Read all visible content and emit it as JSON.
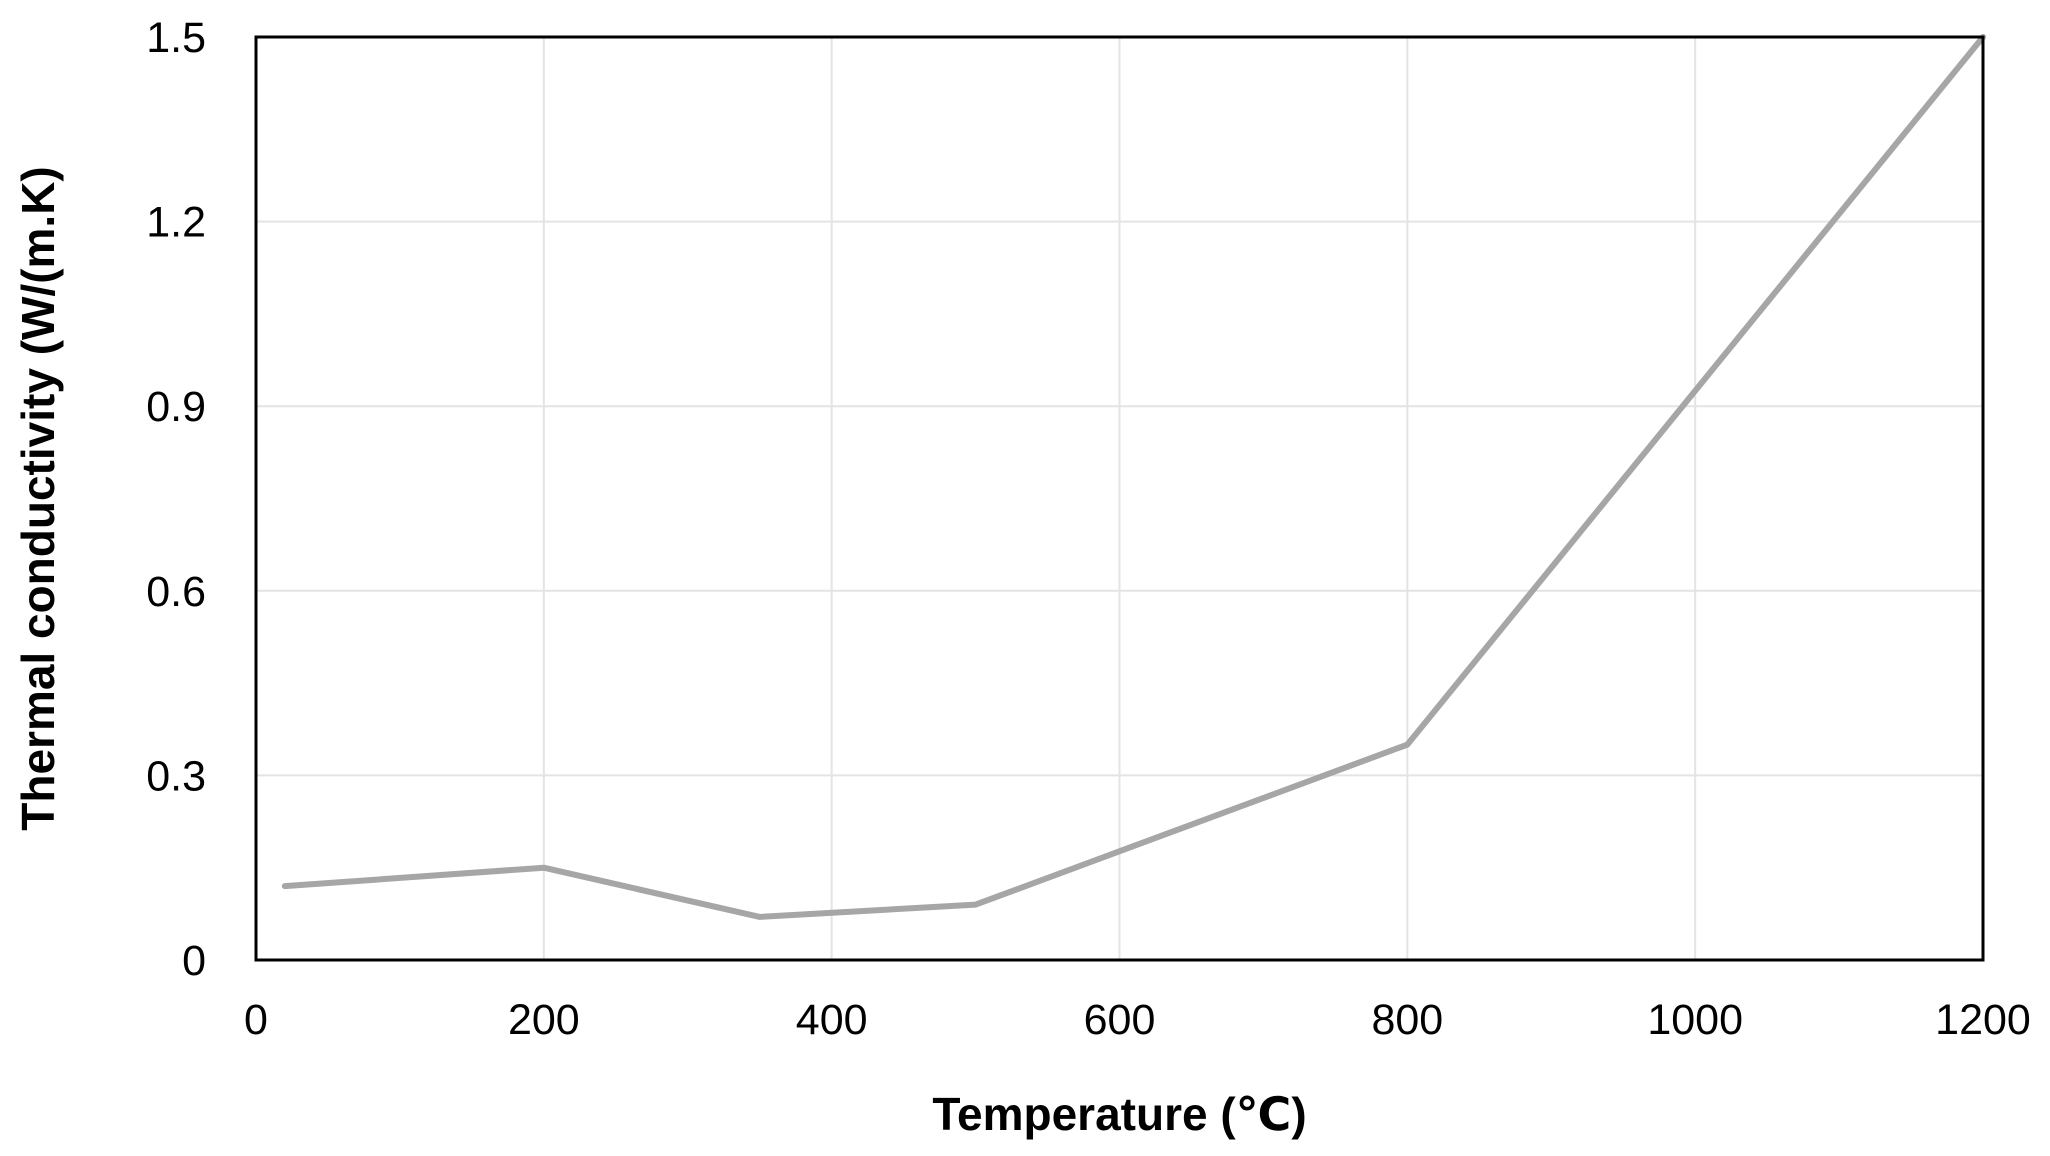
{
  "chart_data": {
    "type": "line",
    "title": "",
    "xlabel": "Temperature (℃)",
    "ylabel": "Thermal conductivity  (W/(m.K)",
    "xlim": [
      0,
      1200
    ],
    "ylim": [
      0,
      1.5
    ],
    "x_ticks": [
      0,
      200,
      400,
      600,
      800,
      1000,
      1200
    ],
    "y_ticks": [
      0,
      0.3,
      0.6,
      0.9,
      1.2,
      1.5
    ],
    "x_tick_labels": [
      "0",
      "200",
      "400",
      "600",
      "800",
      "1000",
      "1200"
    ],
    "y_tick_labels": [
      "0",
      "0.3",
      "0.6",
      "0.9",
      "1.2",
      "1.5"
    ],
    "grid": true,
    "legend": "none",
    "series": [
      {
        "color": "#a6a6a6",
        "x": [
          20,
          200,
          350,
          500,
          800,
          1200
        ],
        "y": [
          0.12,
          0.15,
          0.07,
          0.09,
          0.35,
          1.5
        ]
      }
    ]
  }
}
